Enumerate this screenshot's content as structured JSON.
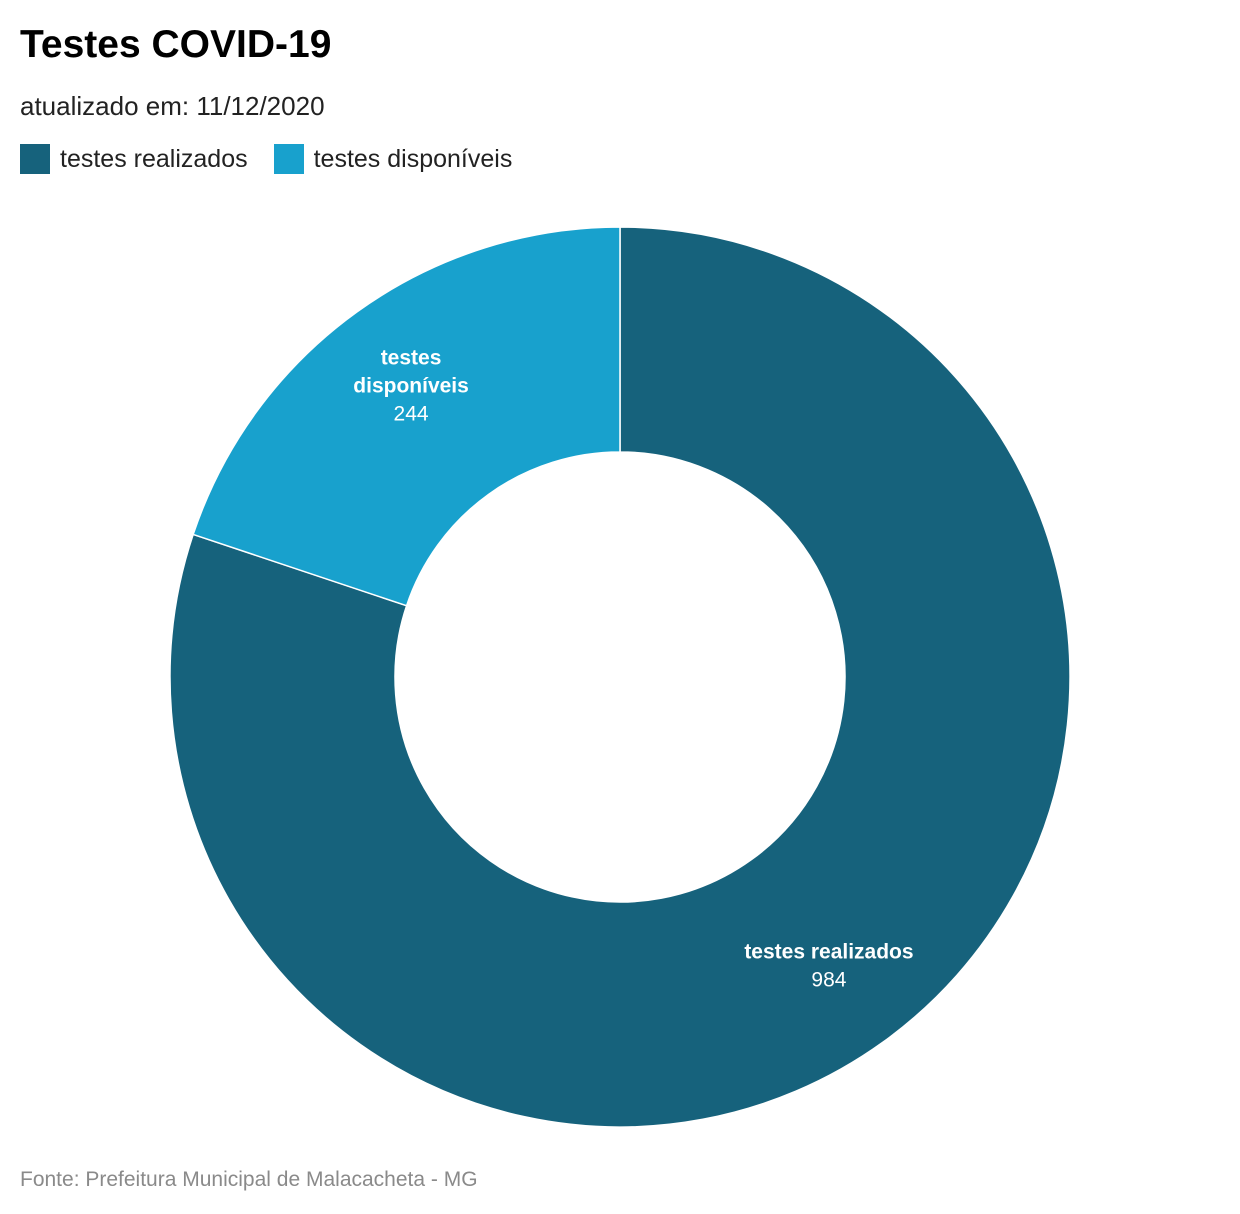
{
  "chart_data": {
    "type": "pie",
    "title": "Testes COVID-19",
    "subtitle": "atualizado em: 11/12/2020",
    "source": "Fonte: Prefeitura Municipal de Malacacheta - MG",
    "legend_position": "top-left",
    "donut": true,
    "slices": [
      {
        "label": "testes realizados",
        "label_lines": [
          "testes realizados"
        ],
        "value": 984,
        "display_value": "984",
        "color": "#16627C"
      },
      {
        "label": "testes disponíveis",
        "label_lines": [
          "testes",
          "disponíveis"
        ],
        "value": 244,
        "display_value": "244",
        "color": "#18A1CD"
      }
    ]
  }
}
